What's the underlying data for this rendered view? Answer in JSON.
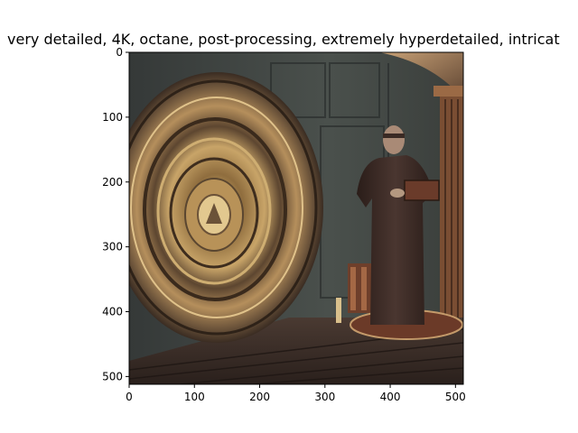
{
  "title": "very detailed, 4K, octane, post-processing, extremely hyperdetailed, intricat",
  "image": {
    "alt": "stylized painting of a robed figure holding a book next to a large ornate golden disc in a dim interior",
    "palette": {
      "wall": "#3f4442",
      "wall_dark": "#2c302f",
      "gold": "#b89258",
      "gold_dark": "#5a4630",
      "robe": "#3a2a24",
      "floor": "#3b2f29",
      "column": "#7a4e33"
    }
  },
  "axes": {
    "x_ticks": [
      "0",
      "100",
      "200",
      "300",
      "400",
      "500"
    ],
    "y_ticks": [
      "0",
      "100",
      "200",
      "300",
      "400",
      "500"
    ],
    "x_tick_values": [
      0,
      100,
      200,
      300,
      400,
      500
    ],
    "y_tick_values": [
      0,
      100,
      200,
      300,
      400,
      500
    ],
    "xlim": [
      0,
      512
    ],
    "ylim": [
      512,
      0
    ]
  }
}
